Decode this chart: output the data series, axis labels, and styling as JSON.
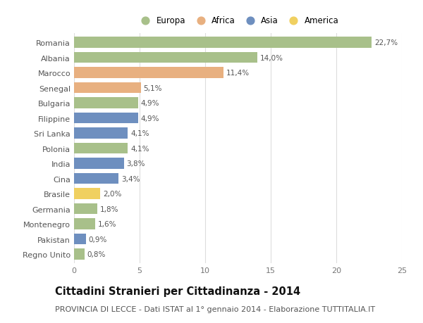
{
  "countries": [
    "Romania",
    "Albania",
    "Marocco",
    "Senegal",
    "Bulgaria",
    "Filippine",
    "Sri Lanka",
    "Polonia",
    "India",
    "Cina",
    "Brasile",
    "Germania",
    "Montenegro",
    "Pakistan",
    "Regno Unito"
  ],
  "values": [
    22.7,
    14.0,
    11.4,
    5.1,
    4.9,
    4.9,
    4.1,
    4.1,
    3.8,
    3.4,
    2.0,
    1.8,
    1.6,
    0.9,
    0.8
  ],
  "labels": [
    "22,7%",
    "14,0%",
    "11,4%",
    "5,1%",
    "4,9%",
    "4,9%",
    "4,1%",
    "4,1%",
    "3,8%",
    "3,4%",
    "2,0%",
    "1,8%",
    "1,6%",
    "0,9%",
    "0,8%"
  ],
  "continents": [
    "Europa",
    "Europa",
    "Africa",
    "Africa",
    "Europa",
    "Asia",
    "Asia",
    "Europa",
    "Asia",
    "Asia",
    "America",
    "Europa",
    "Europa",
    "Asia",
    "Europa"
  ],
  "continent_colors": {
    "Europa": "#a8c08a",
    "Africa": "#e8b080",
    "Asia": "#6e8fbf",
    "America": "#f0d060"
  },
  "legend_order": [
    "Europa",
    "Africa",
    "Asia",
    "America"
  ],
  "title": "Cittadini Stranieri per Cittadinanza - 2014",
  "subtitle": "PROVINCIA DI LECCE - Dati ISTAT al 1° gennaio 2014 - Elaborazione TUTTITALIA.IT",
  "xlim": [
    0,
    25
  ],
  "xticks": [
    0,
    5,
    10,
    15,
    20,
    25
  ],
  "bg_color": "#ffffff",
  "grid_color": "#dddddd",
  "bar_height": 0.72,
  "title_fontsize": 10.5,
  "subtitle_fontsize": 8,
  "label_fontsize": 7.5,
  "tick_fontsize": 8,
  "legend_fontsize": 8.5
}
